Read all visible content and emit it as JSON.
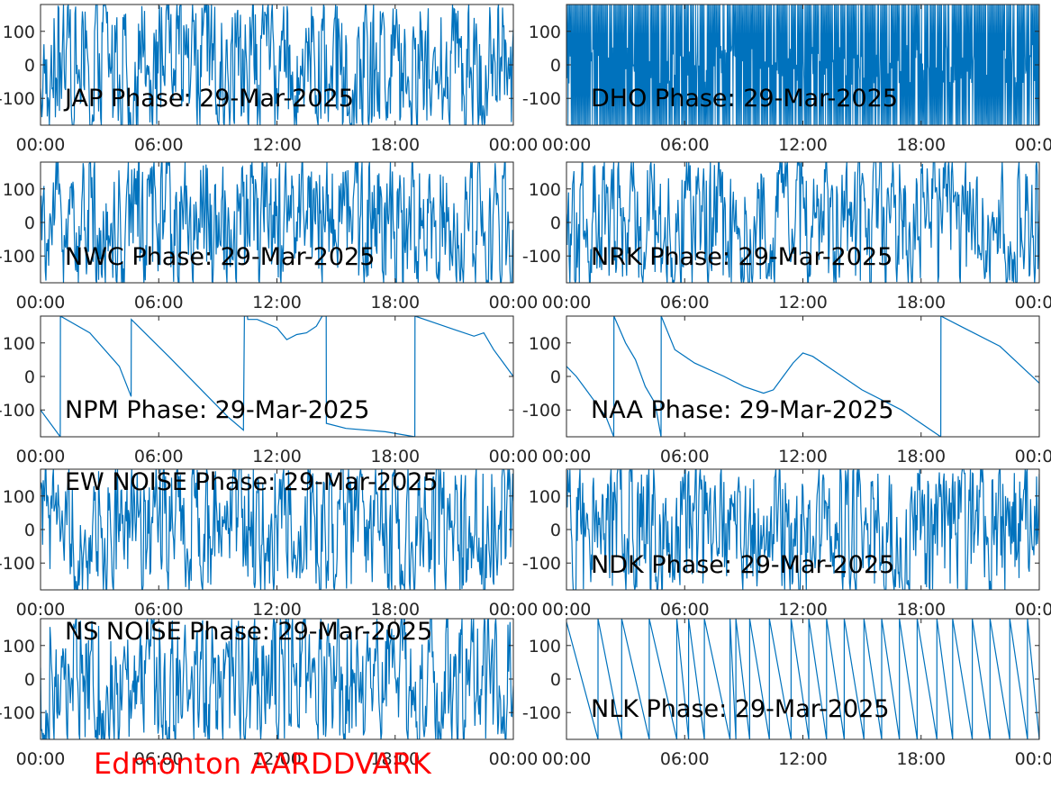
{
  "figure": {
    "footer": "Edmonton AARDDVARK",
    "footer_color": "#ff0000",
    "line_color": "#0072bd"
  },
  "chart_data": [
    {
      "type": "line",
      "title": "JAP Phase: 29-Mar-2025",
      "x_ticks": [
        "00:00",
        "06:00",
        "12:00",
        "18:00",
        "00:00"
      ],
      "y_ticks": [
        "-100",
        "0",
        "100"
      ],
      "ylim": [
        -180,
        180
      ],
      "pattern": "noise",
      "grid": false
    },
    {
      "type": "line",
      "title": "DHO Phase: 29-Mar-2025",
      "x_ticks": [
        "00:00",
        "06:00",
        "12:00",
        "18:00",
        "00:00"
      ],
      "y_ticks": [
        "-100",
        "0",
        "100"
      ],
      "ylim": [
        -180,
        180
      ],
      "pattern": "dense",
      "grid": false
    },
    {
      "type": "line",
      "title": "NWC Phase: 29-Mar-2025",
      "x_ticks": [
        "00:00",
        "06:00",
        "12:00",
        "18:00",
        "00:00"
      ],
      "y_ticks": [
        "-100",
        "0",
        "100"
      ],
      "ylim": [
        -180,
        180
      ],
      "pattern": "noise",
      "grid": false
    },
    {
      "type": "line",
      "title": "NRK Phase: 29-Mar-2025",
      "x_ticks": [
        "00:00",
        "06:00",
        "12:00",
        "18:00",
        "00:00"
      ],
      "y_ticks": [
        "-100",
        "0",
        "100"
      ],
      "ylim": [
        -180,
        180
      ],
      "pattern": "noise",
      "grid": false
    },
    {
      "type": "line",
      "title": "NPM Phase: 29-Mar-2025",
      "x_ticks": [
        "00:00",
        "06:00",
        "12:00",
        "18:00",
        "00:00"
      ],
      "y_ticks": [
        "-100",
        "0",
        "100"
      ],
      "ylim": [
        -180,
        180
      ],
      "pattern": "points",
      "grid": false,
      "x_hours": [
        0,
        1.0,
        1.01,
        2.5,
        4.0,
        4.6,
        4.61,
        6.5,
        8.0,
        9.5,
        10.3,
        10.35,
        10.5,
        10.52,
        11.0,
        12.0,
        12.5,
        13.0,
        13.5,
        14.0,
        14.3,
        14.5,
        14.51,
        15.5,
        17.5,
        18.5,
        19.0,
        19.01,
        20.0,
        21.0,
        22.0,
        22.5,
        23.0,
        23.5,
        24.0
      ],
      "phase_deg": [
        -100,
        -180,
        180,
        130,
        30,
        -60,
        170,
        60,
        -30,
        -120,
        -160,
        180,
        180,
        170,
        170,
        145,
        110,
        125,
        130,
        150,
        180,
        180,
        -140,
        -155,
        -165,
        -175,
        -180,
        180,
        160,
        140,
        120,
        130,
        80,
        40,
        0
      ]
    },
    {
      "type": "line",
      "title": "NAA Phase: 29-Mar-2025",
      "x_ticks": [
        "00:00",
        "06:00",
        "12:00",
        "18:00",
        "00:00"
      ],
      "y_ticks": [
        "-100",
        "0",
        "100"
      ],
      "ylim": [
        -180,
        180
      ],
      "pattern": "points",
      "grid": false,
      "x_hours": [
        0,
        0.5,
        1.0,
        1.5,
        2.0,
        2.4,
        2.41,
        3.0,
        3.5,
        4.0,
        4.5,
        4.8,
        4.81,
        5.5,
        6.5,
        8.0,
        9.0,
        10.0,
        10.5,
        11.0,
        11.5,
        12.0,
        12.5,
        13.5,
        15.0,
        17.0,
        19.0,
        19.01,
        20.0,
        22.0,
        24.0
      ],
      "phase_deg": [
        30,
        0,
        -40,
        -80,
        -120,
        -180,
        180,
        100,
        50,
        -30,
        -80,
        -180,
        180,
        80,
        40,
        0,
        -30,
        -50,
        -40,
        0,
        40,
        70,
        60,
        20,
        -40,
        -100,
        -180,
        180,
        150,
        90,
        -20
      ]
    },
    {
      "type": "line",
      "title": "EW NOISE Phase: 29-Mar-2025",
      "x_ticks": [
        "00:00",
        "06:00",
        "12:00",
        "18:00",
        "00:00"
      ],
      "y_ticks": [
        "-100",
        "0",
        "100"
      ],
      "ylim": [
        -180,
        180
      ],
      "pattern": "noise",
      "grid": false
    },
    {
      "type": "line",
      "title": "NDK Phase: 29-Mar-2025",
      "x_ticks": [
        "00:00",
        "06:00",
        "12:00",
        "18:00",
        "00:00"
      ],
      "y_ticks": [
        "-100",
        "0",
        "100"
      ],
      "ylim": [
        -180,
        180
      ],
      "pattern": "noise",
      "grid": false
    },
    {
      "type": "line",
      "title": "NS NOISE Phase: 29-Mar-2025",
      "x_ticks": [
        "00:00",
        "06:00",
        "12:00",
        "18:00",
        "00:00"
      ],
      "y_ticks": [
        "-100",
        "0",
        "100"
      ],
      "ylim": [
        -180,
        180
      ],
      "pattern": "noise",
      "grid": false
    },
    {
      "type": "line",
      "title": "NLK Phase: 29-Mar-2025",
      "x_ticks": [
        "00:00",
        "06:00",
        "12:00",
        "18:00",
        "00:00"
      ],
      "y_ticks": [
        "-100",
        "0",
        "100"
      ],
      "ylim": [
        -180,
        180
      ],
      "pattern": "sawtooth",
      "grid": false,
      "wrap_hours": [
        0,
        1.6,
        2.8,
        4.2,
        5.6,
        6.2,
        7.0,
        8.3,
        8.6,
        9.3,
        10.3,
        11.4,
        12.3,
        13.2,
        14.1,
        15.1,
        16.0,
        16.9,
        17.8,
        18.8,
        19.6,
        20.6,
        21.5,
        22.5,
        23.4,
        24.0
      ]
    }
  ]
}
